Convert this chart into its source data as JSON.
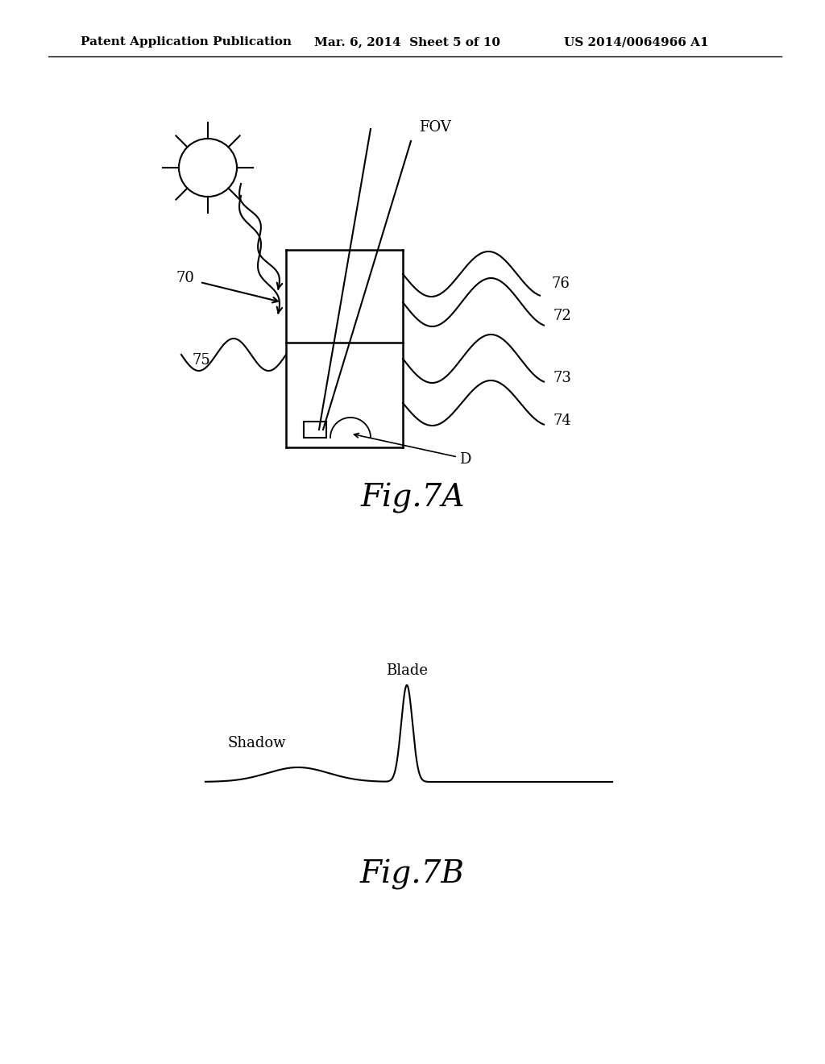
{
  "bg_color": "#ffffff",
  "header_left": "Patent Application Publication",
  "header_center": "Mar. 6, 2014  Sheet 5 of 10",
  "header_right": "US 2014/0064966 A1",
  "fig7a_label": "Fig.7A",
  "fig7b_label": "Fig.7B",
  "label_FOV": "FOV",
  "label_76": "76",
  "label_72": "72",
  "label_73": "73",
  "label_74": "74",
  "label_70": "70",
  "label_75": "75",
  "label_D": "D",
  "label_Blade": "Blade",
  "label_Shadow": "Shadow"
}
